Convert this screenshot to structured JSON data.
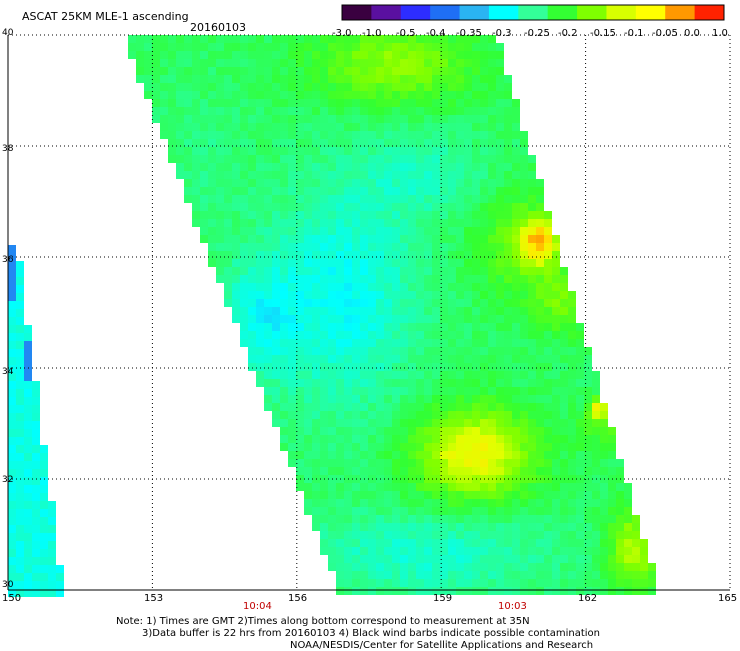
{
  "header": {
    "title": "ASCAT 25KM MLE-1 ascending",
    "date": "20160103"
  },
  "colorbar": {
    "labels": [
      "-3.0",
      "-1.0",
      "-0.5",
      "-0.4",
      "-0.35",
      "-0.3",
      "-0.25",
      "-0.2",
      "-0.15",
      "-0.1",
      "-0.05",
      "0.0",
      "1.0"
    ],
    "colors": [
      "#3a0040",
      "#5a10a0",
      "#2d2dff",
      "#1f6ff5",
      "#2ab4f2",
      "#00ffff",
      "#33ff99",
      "#33ff33",
      "#7fff00",
      "#d8ff00",
      "#ffff00",
      "#ff9900",
      "#ff2200"
    ]
  },
  "axes": {
    "y_ticks": [
      "40",
      "38",
      "36",
      "34",
      "32",
      "30"
    ],
    "x_ticks": [
      "150",
      "153",
      "156",
      "159",
      "162",
      "165"
    ],
    "times": [
      "10:04",
      "10:03"
    ]
  },
  "map": {
    "lon_range": [
      150,
      165
    ],
    "lat_range": [
      30,
      40
    ]
  },
  "footer": {
    "note_line1": "Note: 1) Times are GMT 2)Times along bottom correspond to measurement at 35N",
    "note_line2": "3)Data buffer is 22 hrs from 20160103 4) Black wind barbs indicate possible contamination",
    "credit": "NOAA/NESDIS/Center for Satellite Applications and Research"
  }
}
